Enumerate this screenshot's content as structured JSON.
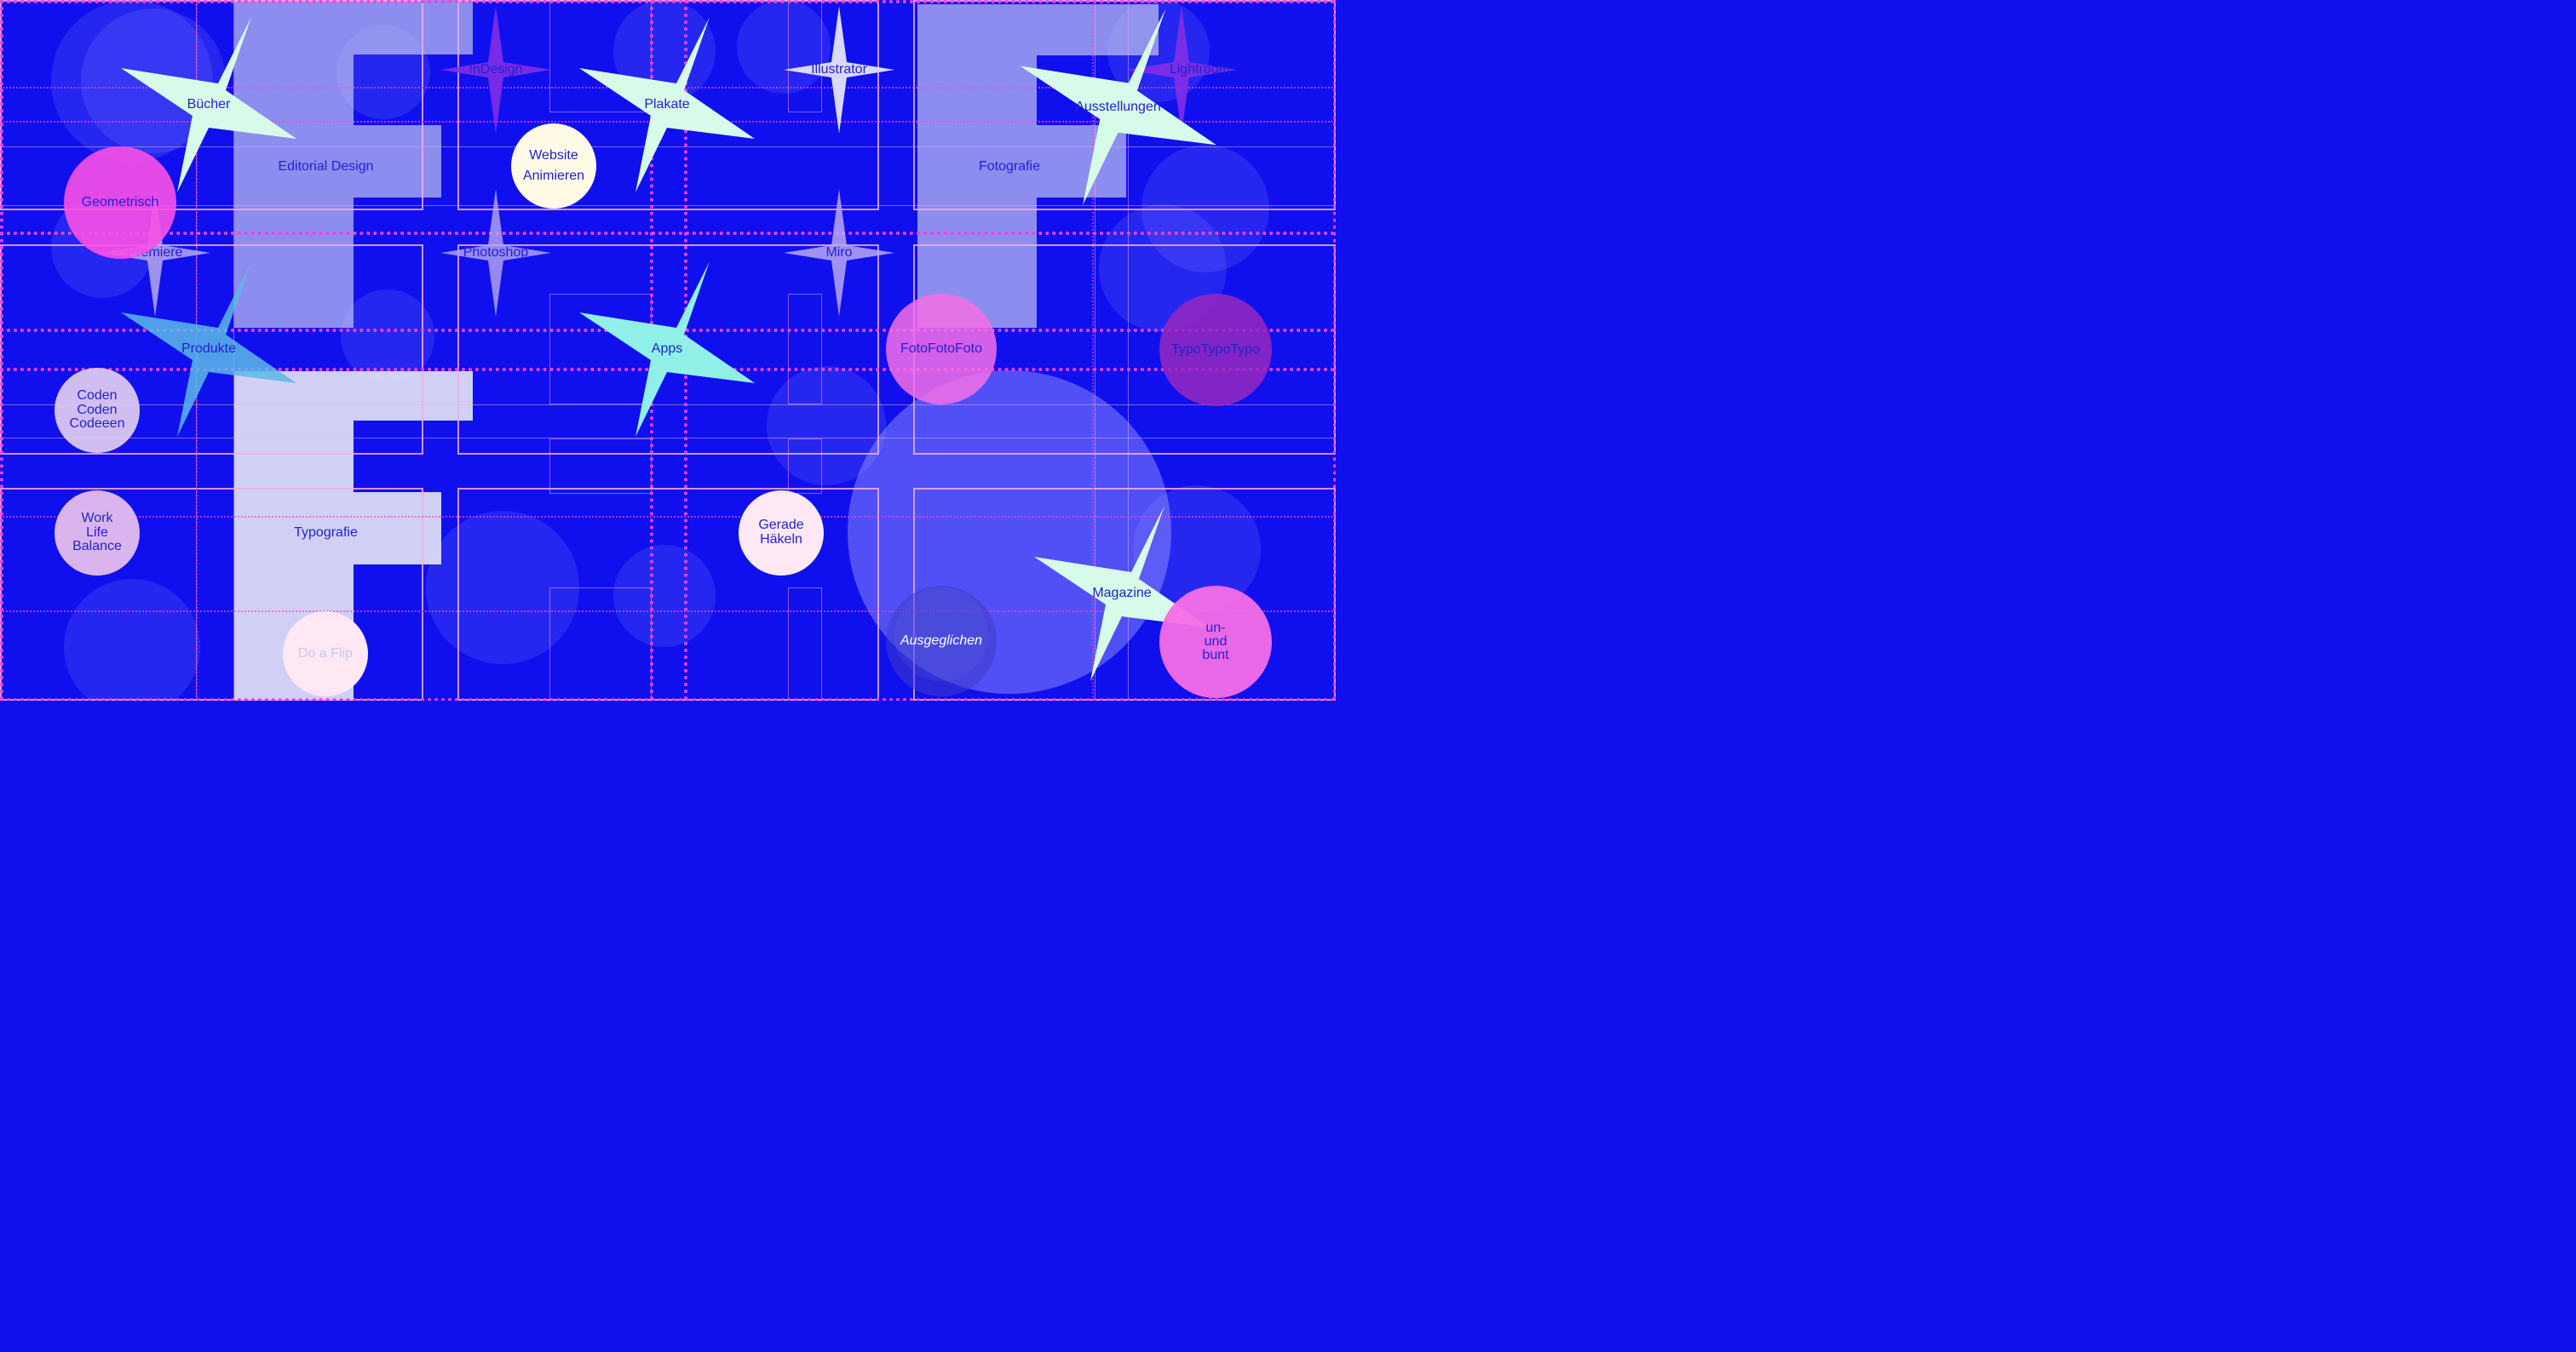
{
  "colors": {
    "background": "#1010ee",
    "pink": "#f060e0",
    "magenta": "#9a30c0",
    "mint": "#d8fae8",
    "cyan": "#90f0e8",
    "lavender": "#d8d8f8",
    "text": "#2222cc"
  },
  "stars": [
    {
      "label": "Bücher"
    },
    {
      "label": "Plakate"
    },
    {
      "label": "Ausstellungen"
    },
    {
      "label": "Produkte"
    },
    {
      "label": "Apps"
    },
    {
      "label": "Magazine"
    }
  ],
  "sparkles": [
    {
      "label": "InDesign"
    },
    {
      "label": "Illustrator"
    },
    {
      "label": "Lightroom"
    },
    {
      "label": "Premiere"
    },
    {
      "label": "Photoshop"
    },
    {
      "label": "Miro"
    }
  ],
  "circles": [
    {
      "label": "Geometrisch"
    },
    {
      "label": "Website\nAnimieren"
    },
    {
      "label": "FotoFotoFoto"
    },
    {
      "label": "TypoTypoTypo"
    },
    {
      "label": "Coden\nCoden\nCodeeen"
    },
    {
      "label": "Work\nLife\nBalance"
    },
    {
      "label": "Gerade\nHäkeln"
    },
    {
      "label": "Do a Flip"
    },
    {
      "label": "Ausgeglichen"
    },
    {
      "label": "un-\nund\nbunt"
    }
  ],
  "areas": [
    {
      "label": "Editorial Design"
    },
    {
      "label": "Fotografie"
    },
    {
      "label": "Typografie"
    }
  ]
}
